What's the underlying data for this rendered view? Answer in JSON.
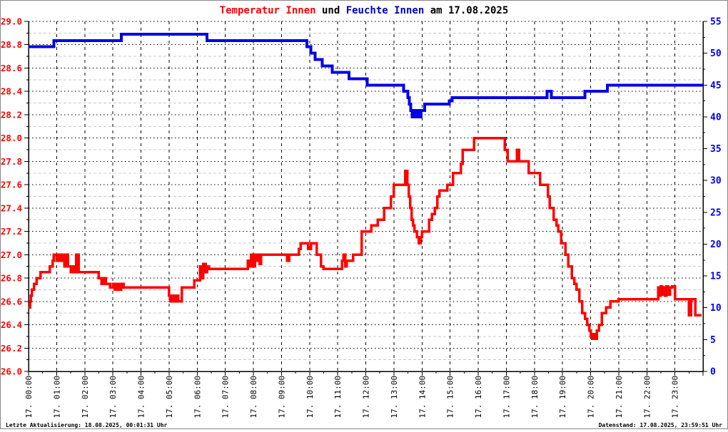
{
  "title": {
    "temperature": "Temperatur Innen",
    "connector": " und ",
    "humidity": "Feuchte Innen",
    "date_suffix": " am 17.08.2025"
  },
  "footer": {
    "left": "Letzte Aktualisierung: 18.08.2025, 00:01:31 Uhr",
    "right": "Datenstand: 17.08.2025, 23:59:51 Uhr"
  },
  "colors": {
    "temperature_line": "#ff0000",
    "humidity_line": "#0000e6",
    "temperature_title": "#ff0000",
    "humidity_title": "#0000bb",
    "left_axis_label": "#ff0000",
    "right_axis_label": "#0000ee",
    "x_axis_label": "#000000",
    "grid_major": "#000000",
    "grid_minor": "#c8c8c8",
    "axis_line": "#000000",
    "border": "#888888",
    "background": "#ffffff"
  },
  "chart_data": {
    "type": "line",
    "title": "Temperatur Innen und Feuchte Innen am 17.08.2025",
    "grid": true,
    "legend_position": "none",
    "x_axis": {
      "unit": "hour of day 17.08.2025",
      "range": [
        0,
        24
      ],
      "tick_hours": [
        0,
        1,
        2,
        3,
        4,
        5,
        6,
        7,
        8,
        9,
        10,
        11,
        12,
        13,
        14,
        15,
        16,
        17,
        18,
        19,
        20,
        21,
        22,
        23
      ],
      "labels": [
        "17. 00:00",
        "17. 01:00",
        "17. 02:00",
        "17. 03:00",
        "17. 04:00",
        "17. 05:00",
        "17. 06:00",
        "17. 07:00",
        "17. 08:00",
        "17. 09:00",
        "17. 10:00",
        "17. 11:00",
        "17. 12:00",
        "17. 13:00",
        "17. 14:00",
        "17. 15:00",
        "17. 16:00",
        "17. 17:00",
        "17. 18:00",
        "17. 19:00",
        "17. 20:00",
        "17. 21:00",
        "17. 22:00",
        "17. 23:00"
      ]
    },
    "left_axis": {
      "series": "Temperatur Innen",
      "min": 26.0,
      "max": 29.0,
      "step": 0.2,
      "minor_step": 0.1,
      "ticks": [
        "29.0",
        "28.8",
        "28.6",
        "28.4",
        "28.2",
        "28.0",
        "27.8",
        "27.6",
        "27.4",
        "27.2",
        "27.0",
        "26.8",
        "26.6",
        "26.4",
        "26.2",
        "26.0"
      ]
    },
    "right_axis": {
      "series": "Feuchte Innen",
      "min": 0,
      "max": 55,
      "step": 5,
      "minor_step": 2.5,
      "ticks": [
        "55",
        "50",
        "45",
        "40",
        "35",
        "30",
        "25",
        "20",
        "15",
        "10",
        "5",
        "0"
      ]
    },
    "series": [
      {
        "name": "Temperatur Innen",
        "axis": "left",
        "interpolation": "step-after",
        "end": 23.95,
        "points": [
          [
            0.0,
            26.55
          ],
          [
            0.05,
            26.6
          ],
          [
            0.08,
            26.65
          ],
          [
            0.12,
            26.7
          ],
          [
            0.2,
            26.75
          ],
          [
            0.28,
            26.8
          ],
          [
            0.42,
            26.85
          ],
          [
            0.75,
            26.9
          ],
          [
            0.85,
            26.95
          ],
          [
            0.9,
            27.0
          ],
          [
            1.0,
            26.95
          ],
          [
            1.05,
            27.0
          ],
          [
            1.12,
            26.95
          ],
          [
            1.18,
            27.0
          ],
          [
            1.28,
            26.9
          ],
          [
            1.32,
            27.0
          ],
          [
            1.4,
            26.9
          ],
          [
            1.5,
            26.85
          ],
          [
            1.58,
            26.9
          ],
          [
            1.63,
            26.85
          ],
          [
            1.7,
            27.0
          ],
          [
            1.78,
            26.85
          ],
          [
            2.5,
            26.8
          ],
          [
            2.6,
            26.75
          ],
          [
            2.68,
            26.8
          ],
          [
            2.75,
            26.75
          ],
          [
            2.9,
            26.72
          ],
          [
            3.0,
            26.75
          ],
          [
            3.07,
            26.7
          ],
          [
            3.15,
            26.75
          ],
          [
            3.22,
            26.7
          ],
          [
            3.3,
            26.75
          ],
          [
            3.38,
            26.72
          ],
          [
            5.0,
            26.65
          ],
          [
            5.05,
            26.6
          ],
          [
            5.12,
            26.65
          ],
          [
            5.18,
            26.6
          ],
          [
            5.28,
            26.65
          ],
          [
            5.33,
            26.6
          ],
          [
            5.45,
            26.72
          ],
          [
            5.9,
            26.78
          ],
          [
            6.1,
            26.9
          ],
          [
            6.17,
            26.8
          ],
          [
            6.22,
            26.92
          ],
          [
            6.3,
            26.85
          ],
          [
            6.35,
            26.9
          ],
          [
            6.42,
            26.88
          ],
          [
            7.8,
            26.95
          ],
          [
            7.87,
            26.9
          ],
          [
            7.92,
            27.0
          ],
          [
            8.0,
            26.9
          ],
          [
            8.05,
            27.0
          ],
          [
            8.12,
            26.95
          ],
          [
            8.17,
            27.0
          ],
          [
            8.22,
            26.92
          ],
          [
            8.27,
            27.0
          ],
          [
            9.2,
            26.95
          ],
          [
            9.27,
            27.0
          ],
          [
            9.62,
            27.05
          ],
          [
            9.68,
            27.1
          ],
          [
            9.95,
            27.05
          ],
          [
            10.05,
            27.1
          ],
          [
            10.25,
            27.0
          ],
          [
            10.4,
            26.9
          ],
          [
            10.5,
            26.88
          ],
          [
            11.15,
            26.95
          ],
          [
            11.2,
            27.0
          ],
          [
            11.27,
            26.9
          ],
          [
            11.32,
            26.95
          ],
          [
            11.55,
            27.0
          ],
          [
            11.85,
            27.2
          ],
          [
            12.2,
            27.25
          ],
          [
            12.42,
            27.3
          ],
          [
            12.65,
            27.4
          ],
          [
            12.9,
            27.5
          ],
          [
            13.0,
            27.6
          ],
          [
            13.4,
            27.72
          ],
          [
            13.48,
            27.6
          ],
          [
            13.53,
            27.5
          ],
          [
            13.58,
            27.4
          ],
          [
            13.63,
            27.3
          ],
          [
            13.68,
            27.25
          ],
          [
            13.73,
            27.2
          ],
          [
            13.82,
            27.15
          ],
          [
            13.88,
            27.1
          ],
          [
            13.95,
            27.15
          ],
          [
            14.0,
            27.2
          ],
          [
            14.25,
            27.3
          ],
          [
            14.35,
            27.35
          ],
          [
            14.45,
            27.4
          ],
          [
            14.55,
            27.5
          ],
          [
            14.62,
            27.55
          ],
          [
            14.9,
            27.6
          ],
          [
            15.1,
            27.7
          ],
          [
            15.38,
            27.78
          ],
          [
            15.45,
            27.9
          ],
          [
            15.85,
            28.0
          ],
          [
            16.95,
            27.9
          ],
          [
            17.05,
            27.8
          ],
          [
            17.38,
            27.9
          ],
          [
            17.45,
            27.8
          ],
          [
            17.8,
            27.7
          ],
          [
            18.2,
            27.6
          ],
          [
            18.48,
            27.5
          ],
          [
            18.55,
            27.4
          ],
          [
            18.68,
            27.3
          ],
          [
            18.78,
            27.25
          ],
          [
            18.85,
            27.2
          ],
          [
            18.95,
            27.1
          ],
          [
            19.1,
            27.0
          ],
          [
            19.2,
            26.9
          ],
          [
            19.33,
            26.8
          ],
          [
            19.42,
            26.75
          ],
          [
            19.5,
            26.7
          ],
          [
            19.6,
            26.6
          ],
          [
            19.7,
            26.5
          ],
          [
            19.8,
            26.45
          ],
          [
            19.88,
            26.4
          ],
          [
            19.95,
            26.35
          ],
          [
            20.0,
            26.3
          ],
          [
            20.05,
            26.28
          ],
          [
            20.1,
            26.32
          ],
          [
            20.15,
            26.28
          ],
          [
            20.22,
            26.35
          ],
          [
            20.3,
            26.4
          ],
          [
            20.4,
            26.5
          ],
          [
            20.55,
            26.55
          ],
          [
            20.7,
            26.6
          ],
          [
            21.0,
            26.62
          ],
          [
            22.4,
            26.72
          ],
          [
            22.45,
            26.65
          ],
          [
            22.5,
            26.73
          ],
          [
            22.55,
            26.66
          ],
          [
            22.6,
            26.72
          ],
          [
            22.65,
            26.65
          ],
          [
            22.7,
            26.73
          ],
          [
            22.75,
            26.66
          ],
          [
            22.82,
            26.72
          ],
          [
            22.9,
            26.73
          ],
          [
            23.0,
            26.62
          ],
          [
            23.5,
            26.48
          ],
          [
            23.57,
            26.62
          ],
          [
            23.73,
            26.48
          ]
        ]
      },
      {
        "name": "Feuchte Innen",
        "axis": "right",
        "interpolation": "step-after",
        "end": 24.0,
        "points": [
          [
            0.0,
            51
          ],
          [
            0.9,
            52
          ],
          [
            3.3,
            53
          ],
          [
            6.35,
            52
          ],
          [
            9.9,
            51
          ],
          [
            10.05,
            50
          ],
          [
            10.2,
            49
          ],
          [
            10.45,
            48
          ],
          [
            10.8,
            47
          ],
          [
            11.4,
            46
          ],
          [
            12.05,
            45
          ],
          [
            13.35,
            44
          ],
          [
            13.5,
            43
          ],
          [
            13.55,
            42
          ],
          [
            13.6,
            41
          ],
          [
            13.65,
            40
          ],
          [
            13.72,
            41
          ],
          [
            13.78,
            40
          ],
          [
            13.84,
            41
          ],
          [
            13.9,
            40
          ],
          [
            13.97,
            41
          ],
          [
            14.1,
            42
          ],
          [
            14.97,
            42.5
          ],
          [
            15.07,
            43
          ],
          [
            18.45,
            44
          ],
          [
            18.6,
            43
          ],
          [
            19.8,
            44
          ],
          [
            20.6,
            45
          ]
        ]
      }
    ]
  }
}
